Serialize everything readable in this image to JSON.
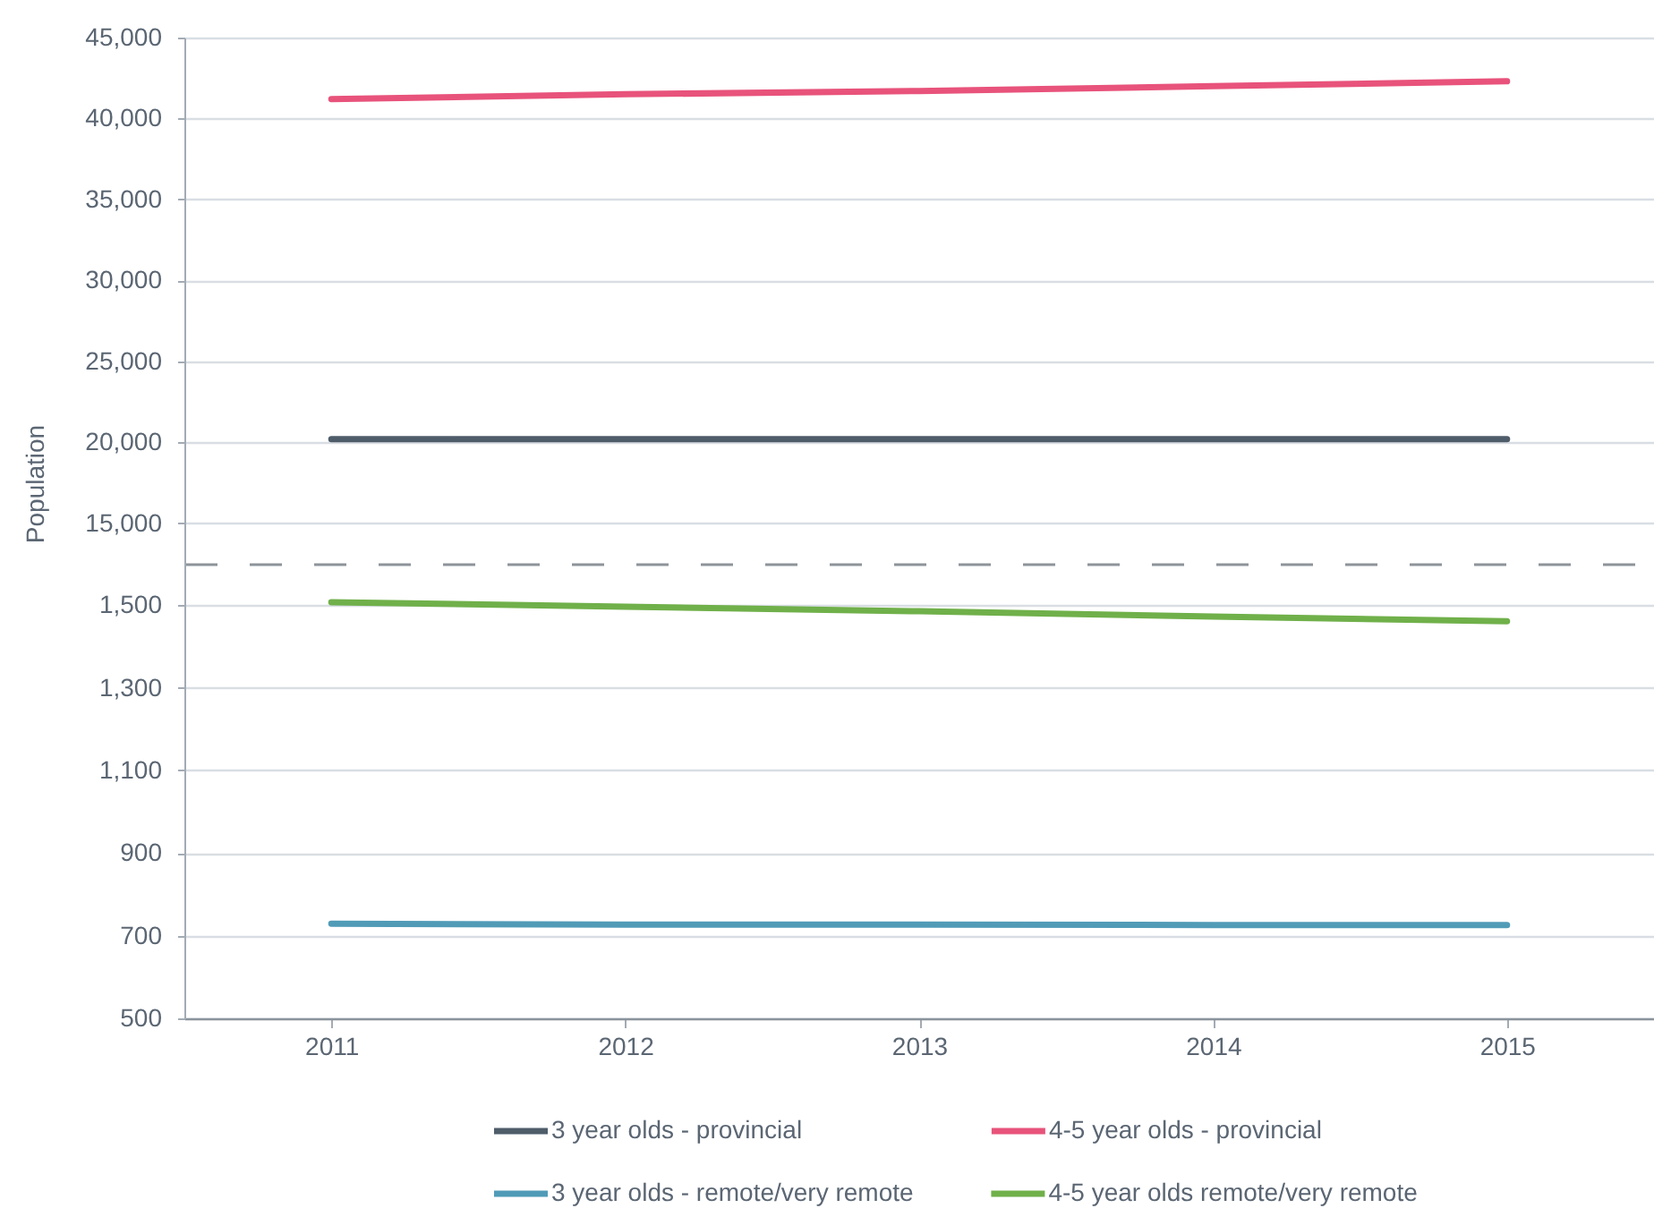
{
  "chart_data": [
    {
      "type": "line",
      "ylabel": "Population",
      "x": [
        2011,
        2012,
        2013,
        2014,
        2015
      ],
      "xlim": [
        2010.5,
        2015.5
      ],
      "ylim": [
        12500,
        45000
      ],
      "yticks": [
        {
          "value": 15000,
          "label": "15,000"
        },
        {
          "value": 20000,
          "label": "20,000"
        },
        {
          "value": 25000,
          "label": "25,000"
        },
        {
          "value": 30000,
          "label": "30,000"
        },
        {
          "value": 35000,
          "label": "35,000"
        },
        {
          "value": 40000,
          "label": "40,000"
        },
        {
          "value": 45000,
          "label": "45,000"
        }
      ],
      "tick_labels": "y",
      "grid": "y",
      "legend": "bottom",
      "series": [
        {
          "name": "3 year olds - provincial",
          "color": "#4f5c6a",
          "values": [
            20200,
            20200,
            20200,
            20200,
            20200
          ]
        },
        {
          "name": "4-5 year olds - provincial",
          "color": "#e8537b",
          "values": [
            41200,
            41500,
            41700,
            42000,
            42300
          ]
        }
      ]
    },
    {
      "type": "line",
      "x": [
        2011,
        2012,
        2013,
        2014,
        2015
      ],
      "xlim": [
        2010.5,
        2015.5
      ],
      "xticks": [
        2011,
        2012,
        2013,
        2014,
        2015
      ],
      "ylim": [
        500,
        1600
      ],
      "yticks": [
        500,
        700,
        900,
        {
          "value": 1100,
          "label": "1,100"
        },
        {
          "value": 1300,
          "label": "1,300"
        },
        {
          "value": 1500,
          "label": "1,500"
        }
      ],
      "grid": "y",
      "legend": "bottom",
      "series": [
        {
          "name": "3 year olds - remote/very remote",
          "color": "#519bb7",
          "values": [
            729,
            727,
            727,
            726,
            726
          ]
        },
        {
          "name": "4-5 year olds remote/very remote",
          "color": "#70b04a",
          "values": [
            1507,
            1496,
            1485,
            1472,
            1461
          ]
        }
      ]
    }
  ]
}
